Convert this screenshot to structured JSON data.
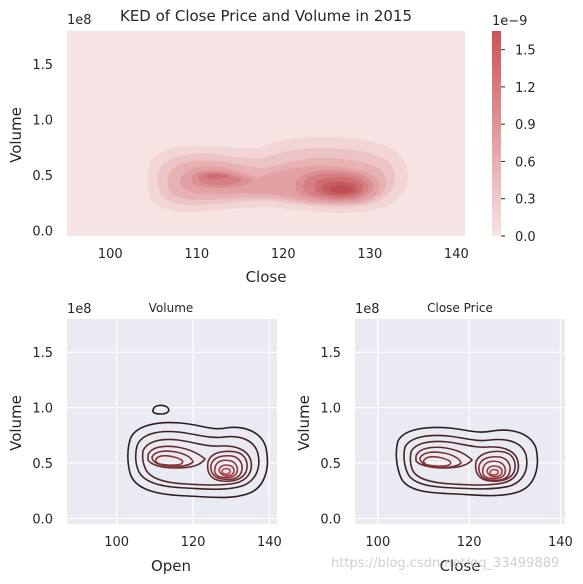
{
  "chart_data": [
    {
      "type": "heatmap",
      "subtype": "filled-kde",
      "title": "KED of Close Price and Volume in 2015",
      "xlabel": "Close",
      "ylabel": "Volume",
      "y_multiplier": "1e8",
      "xlim": [
        95,
        141
      ],
      "ylim": [
        -0.05,
        1.8
      ],
      "xticks": [
        "100",
        "110",
        "120",
        "130",
        "140"
      ],
      "yticks": [
        "0.0",
        "0.5",
        "1.0",
        "1.5"
      ],
      "peaks": [
        {
          "x": 112.5,
          "y": 0.5,
          "density": 0.7
        },
        {
          "x": 127,
          "y": 0.37,
          "density": 1.6
        }
      ],
      "colorbar": {
        "multiplier": "1e−9",
        "range": [
          0,
          1.65
        ],
        "ticks": [
          "0.0",
          "0.3",
          "0.6",
          "0.9",
          "1.2",
          "1.5"
        ],
        "color": "#c94a4f"
      },
      "grid": false
    },
    {
      "type": "heatmap",
      "subtype": "contour-kde",
      "title": "Volume",
      "xlabel": "Open",
      "ylabel": "Volume",
      "y_multiplier": "1e8",
      "xlim": [
        87,
        142
      ],
      "ylim": [
        -0.05,
        1.8
      ],
      "xticks": [
        "100",
        "120",
        "140"
      ],
      "yticks": [
        "0.0",
        "0.5",
        "1.0",
        "1.5"
      ],
      "peaks": [
        {
          "x": 112,
          "y": 0.51,
          "density": 0.8
        },
        {
          "x": 126.5,
          "y": 0.38,
          "density": 1.6
        }
      ],
      "grid": true
    },
    {
      "type": "heatmap",
      "subtype": "contour-kde",
      "title": "Close Price",
      "xlabel": "Close",
      "ylabel": "Volume",
      "y_multiplier": "1e8",
      "xlim": [
        95,
        141
      ],
      "ylim": [
        -0.05,
        1.8
      ],
      "xticks": [
        "100",
        "120",
        "140"
      ],
      "yticks": [
        "0.0",
        "0.5",
        "1.0",
        "1.5"
      ],
      "peaks": [
        {
          "x": 112.5,
          "y": 0.5,
          "density": 0.8
        },
        {
          "x": 127,
          "y": 0.37,
          "density": 1.6
        }
      ],
      "grid": true
    }
  ],
  "watermark": "https://blog.csdn.net/qq_33499889"
}
